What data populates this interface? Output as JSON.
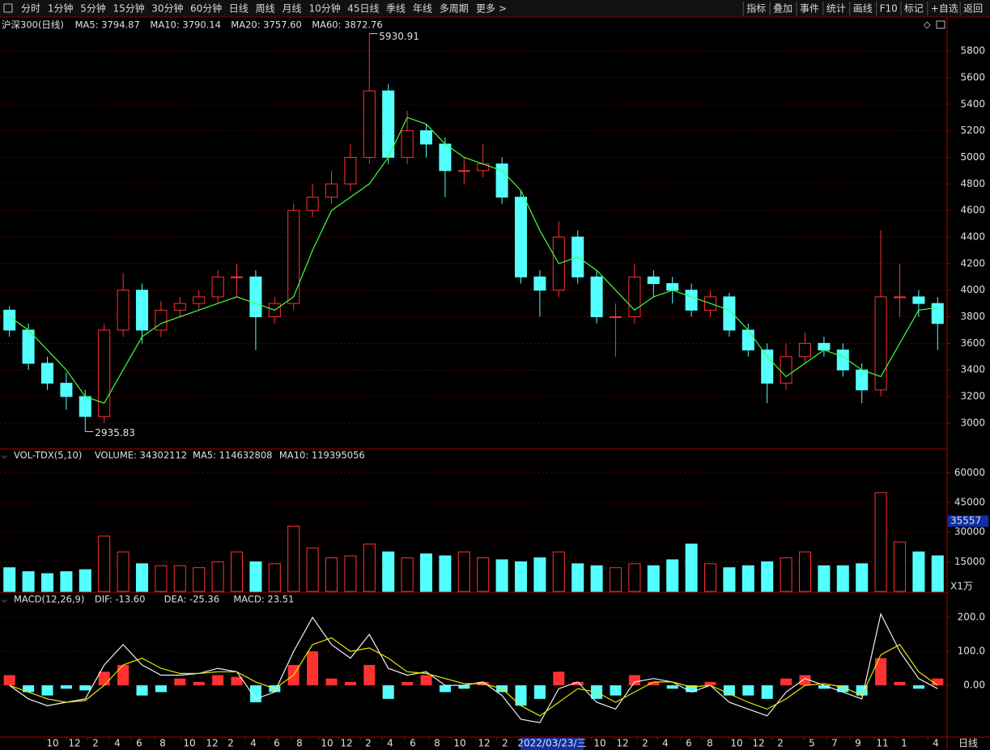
{
  "toolbar": {
    "left": [
      "分时",
      "1分钟",
      "5分钟",
      "15分钟",
      "30分钟",
      "60分钟",
      "日线",
      "周线",
      "月线",
      "10分钟",
      "45日线",
      "季线",
      "年线",
      "多周期",
      "更多 >"
    ],
    "right": [
      "指标",
      "叠加",
      "事件",
      "统计",
      "画线",
      "F10",
      "标记",
      "+自选",
      "返回"
    ]
  },
  "chart_data": [
    {
      "type": "candlestick",
      "legend": [
        "沪深300(日线)",
        "MA5: 3794.87",
        "MA10: 3790.14",
        "MA20: 3757.60",
        "MA60: 3872.76"
      ],
      "legend_colors": [
        "#e0e0e0",
        "#e0e0e0",
        "#e8e800",
        "#ff40ff",
        "#40ff40"
      ],
      "open": [
        3850,
        3700,
        3450,
        3300,
        3200,
        3050,
        3700,
        4000,
        3700,
        3850,
        3900,
        3950,
        4100,
        4100,
        3800,
        3900,
        4600,
        4700,
        4800,
        5000,
        5500,
        5000,
        5200,
        5100,
        4900,
        4900,
        4950,
        4700,
        4100,
        4000,
        4400,
        4100,
        3800,
        3800,
        4100,
        4050,
        4000,
        3850,
        3950,
        3700,
        3550,
        3300,
        3500,
        3600,
        3550,
        3400,
        3250,
        3950,
        3950,
        3900
      ],
      "high": [
        3880,
        3750,
        3500,
        3380,
        3250,
        3750,
        4130,
        4050,
        3920,
        3950,
        4000,
        4150,
        4200,
        4150,
        3950,
        4650,
        4800,
        4900,
        5100,
        5930.91,
        5550,
        5350,
        5250,
        5150,
        5000,
        5100,
        5000,
        4750,
        4150,
        4520,
        4450,
        4150,
        3900,
        4200,
        4150,
        4100,
        4050,
        4000,
        3980,
        3750,
        3600,
        3600,
        3680,
        3650,
        3600,
        3450,
        4450,
        4200,
        4000,
        3950
      ],
      "low": [
        3650,
        3400,
        3250,
        3100,
        2935.83,
        3000,
        3650,
        3600,
        3650,
        3800,
        3850,
        3900,
        3950,
        3550,
        3750,
        3850,
        4550,
        4650,
        4750,
        4950,
        4950,
        4950,
        5000,
        4700,
        4800,
        4850,
        4650,
        4050,
        3800,
        3950,
        4050,
        3750,
        3500,
        3750,
        3950,
        3900,
        3800,
        3800,
        3650,
        3500,
        3150,
        3250,
        3450,
        3500,
        3350,
        3150,
        3200,
        3800,
        3800,
        3550
      ],
      "close": [
        3700,
        3450,
        3300,
        3200,
        3050,
        3700,
        4000,
        3700,
        3850,
        3900,
        3950,
        4100,
        4100,
        3800,
        3900,
        4600,
        4700,
        4800,
        5000,
        5500,
        5000,
        5200,
        5100,
        4900,
        4900,
        4950,
        4700,
        4100,
        4000,
        4400,
        4100,
        3800,
        3800,
        4100,
        4050,
        4000,
        3850,
        3950,
        3700,
        3550,
        3300,
        3500,
        3600,
        3550,
        3400,
        3250,
        3950,
        3950,
        3900,
        3750
      ],
      "ma_line": {
        "color": "#40ff40",
        "values": [
          3800,
          3700,
          3550,
          3400,
          3200,
          3150,
          3400,
          3650,
          3750,
          3800,
          3850,
          3900,
          3950,
          3900,
          3850,
          3950,
          4300,
          4600,
          4700,
          4800,
          5000,
          5300,
          5250,
          5100,
          5000,
          4950,
          4900,
          4750,
          4450,
          4200,
          4250,
          4150,
          4000,
          3850,
          3950,
          4000,
          3950,
          3900,
          3850,
          3700,
          3500,
          3350,
          3450,
          3550,
          3500,
          3400,
          3350,
          3600,
          3850,
          3870
        ]
      },
      "up_color": "#ff3232",
      "down_color": "#54ffff",
      "ylim": [
        2817,
        6050
      ],
      "yticks": [
        3000,
        3200,
        3400,
        3600,
        3800,
        4000,
        4200,
        4400,
        4600,
        4800,
        5000,
        5200,
        5400,
        5600,
        5800
      ],
      "grid": true
    },
    {
      "type": "bar",
      "legend": [
        "VOL-TDX(5,10)",
        "VOLUME: 34302112",
        "MA5: 114632808",
        "MA10: 119395056"
      ],
      "legend_colors": [
        "#e0e0e0",
        "#e0e0e0",
        "#e0e0e0",
        "#e8e800"
      ],
      "values": [
        12000,
        10000,
        9000,
        10000,
        11000,
        28000,
        20000,
        14000,
        13000,
        13000,
        12000,
        15000,
        20000,
        15000,
        14000,
        33000,
        22000,
        17000,
        18000,
        24000,
        20000,
        17000,
        19000,
        18000,
        20000,
        17000,
        16000,
        15000,
        17000,
        20000,
        14000,
        13000,
        12000,
        14000,
        13000,
        16000,
        24000,
        14000,
        12000,
        13000,
        15000,
        17000,
        20000,
        13000,
        13000,
        14000,
        50000,
        25000,
        20000,
        18000
      ],
      "current": 35557,
      "unit": "X1万",
      "ylim": [
        0,
        70000
      ],
      "yticks": [
        15000,
        30000,
        45000,
        60000
      ],
      "grid": true
    },
    {
      "type": "macd",
      "legend": [
        "MACD(12,26,9)",
        "DIF: -13.60",
        "DEA: -25.36",
        "MACD: 23.51"
      ],
      "legend_colors": [
        "#e0e0e0",
        "#e0e0e0",
        "#e8e800",
        "#ff40ff"
      ],
      "values": [
        30,
        -20,
        -30,
        -10,
        -15,
        40,
        60,
        -30,
        -20,
        20,
        10,
        30,
        25,
        -50,
        -20,
        60,
        100,
        20,
        10,
        60,
        -40,
        10,
        30,
        -20,
        -10,
        10,
        -20,
        -60,
        -40,
        40,
        10,
        -40,
        -30,
        30,
        10,
        -10,
        -20,
        10,
        -30,
        -30,
        -40,
        20,
        30,
        -10,
        -20,
        -30,
        80,
        10,
        -10,
        20
      ],
      "dif": {
        "color": "#f0f0f0",
        "values": [
          0,
          -40,
          -60,
          -50,
          -40,
          60,
          120,
          60,
          30,
          30,
          35,
          50,
          40,
          -40,
          -20,
          100,
          200,
          120,
          80,
          150,
          50,
          30,
          40,
          0,
          0,
          10,
          -30,
          -100,
          -110,
          -10,
          10,
          -50,
          -70,
          10,
          20,
          10,
          -20,
          0,
          -50,
          -70,
          -90,
          -20,
          20,
          0,
          -20,
          -40,
          210,
          100,
          20,
          -10
        ]
      },
      "dea": {
        "color": "#e8e800",
        "values": [
          0,
          -20,
          -40,
          -50,
          -45,
          0,
          60,
          80,
          50,
          35,
          35,
          40,
          40,
          10,
          -10,
          30,
          120,
          140,
          100,
          110,
          80,
          40,
          35,
          20,
          5,
          5,
          -10,
          -60,
          -90,
          -50,
          -10,
          -20,
          -50,
          -20,
          10,
          10,
          -5,
          0,
          -25,
          -50,
          -70,
          -40,
          0,
          5,
          -5,
          -30,
          90,
          120,
          40,
          0
        ]
      },
      "up_color": "#ff3232",
      "down_color": "#54ffff",
      "ylim": [
        -150,
        267
      ],
      "yticks": [
        {
          "value": 0,
          "label": "0.00"
        },
        {
          "value": 100,
          "label": "100.0"
        },
        {
          "value": 200,
          "label": "200.0"
        }
      ],
      "grid": true
    }
  ],
  "x_axis": {
    "labels": [
      "10",
      "12",
      "2",
      "4",
      "6",
      "8",
      "10",
      "12",
      "2",
      "4",
      "6",
      "8",
      "10",
      "12",
      "2",
      "4",
      "6",
      "8",
      "10",
      "12",
      "2",
      "10",
      "12",
      "2",
      "4",
      "6",
      "8",
      "10",
      "12",
      "2",
      "5",
      "7",
      "9",
      "11",
      "1",
      "4"
    ],
    "cursor_date": "2022/03/23/三",
    "period": "日线"
  }
}
